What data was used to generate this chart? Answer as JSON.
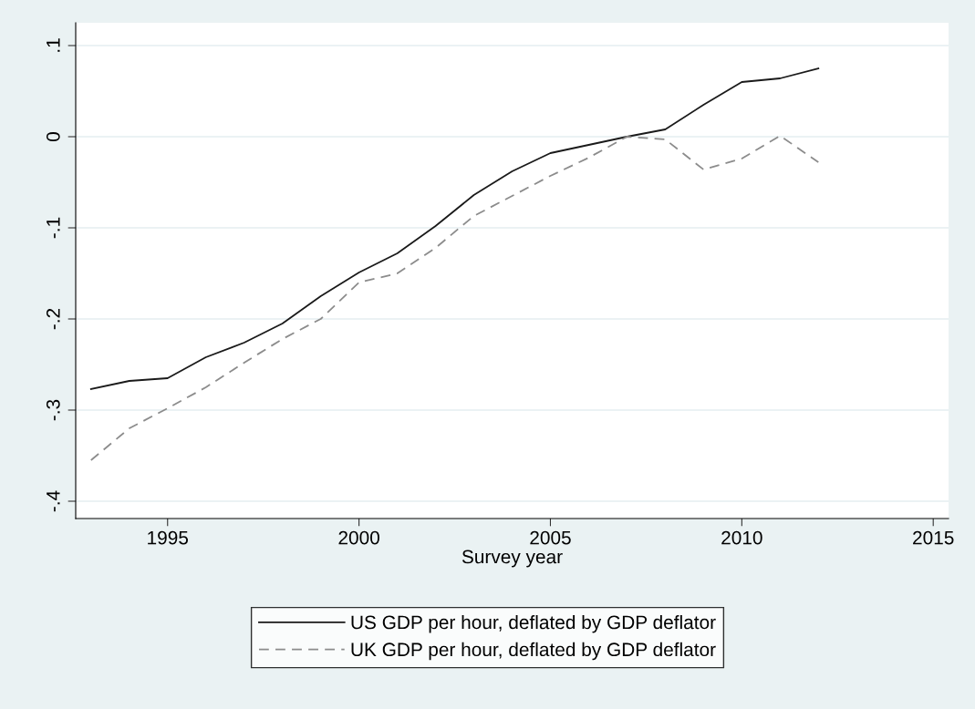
{
  "chart_data": {
    "type": "line",
    "xlabel": "Survey year",
    "x": [
      1993,
      1994,
      1995,
      1996,
      1997,
      1998,
      1999,
      2000,
      2001,
      2002,
      2003,
      2004,
      2005,
      2006,
      2007,
      2008,
      2009,
      2010,
      2011,
      2012
    ],
    "series": [
      {
        "name": "US GDP per hour, deflated by GDP deflator",
        "color": "#1a1a1a",
        "line_style": "solid",
        "values": [
          -0.277,
          -0.268,
          -0.265,
          -0.242,
          -0.226,
          -0.205,
          -0.175,
          -0.149,
          -0.128,
          -0.098,
          -0.064,
          -0.038,
          -0.018,
          -0.009,
          0.0,
          0.008,
          0.035,
          0.06,
          0.064,
          0.075
        ]
      },
      {
        "name": "UK GDP per hour, deflated by GDP deflator",
        "color": "#8c8c8c",
        "line_style": "dashed",
        "values": [
          -0.355,
          -0.32,
          -0.298,
          -0.275,
          -0.248,
          -0.222,
          -0.2,
          -0.16,
          -0.15,
          -0.122,
          -0.087,
          -0.065,
          -0.043,
          -0.023,
          0.0,
          -0.003,
          -0.036,
          -0.024,
          0.001,
          -0.028
        ]
      }
    ],
    "xlim": [
      1992.6,
      2015.4
    ],
    "xticks": [
      1995,
      2000,
      2005,
      2010,
      2015
    ],
    "ylim": [
      -0.419,
      0.125
    ],
    "yticks": [
      {
        "value": -0.4,
        "label": "-.4"
      },
      {
        "value": -0.3,
        "label": "-.3"
      },
      {
        "value": -0.2,
        "label": "-.2"
      },
      {
        "value": -0.1,
        "label": "-.1"
      },
      0,
      {
        "value": 0.1,
        "label": ".1"
      }
    ],
    "grid": "y",
    "legend": "bottom"
  }
}
